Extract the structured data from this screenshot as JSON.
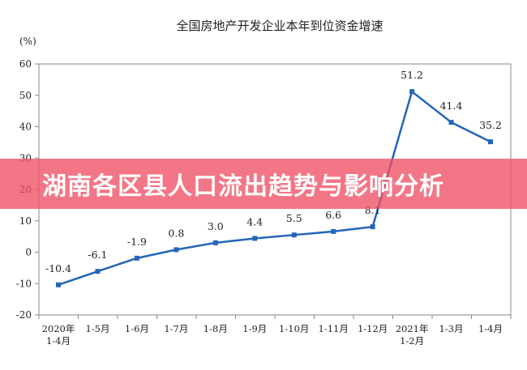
{
  "chart_data": {
    "type": "line",
    "title": "全国房地产开发企业本年到位资金增速",
    "ylabel": "(%)",
    "xlabel": "",
    "ylim": [
      -20,
      60
    ],
    "yticks": [
      -20,
      -10,
      0,
      10,
      20,
      30,
      40,
      50,
      60
    ],
    "grid": false,
    "legend": "none",
    "categories": [
      [
        "2020年",
        "1-4月"
      ],
      [
        "1-5月"
      ],
      [
        "1-6月"
      ],
      [
        "1-7月"
      ],
      [
        "1-8月"
      ],
      [
        "1-9月"
      ],
      [
        "1-10月"
      ],
      [
        "1-11月"
      ],
      [
        "1-12月"
      ],
      [
        "2021年",
        "1-2月"
      ],
      [
        "1-3月"
      ],
      [
        "1-4月"
      ]
    ],
    "series": [
      {
        "values": [
          -10.4,
          -6.1,
          -1.9,
          0.8,
          3.0,
          4.4,
          5.5,
          6.6,
          8.1,
          51.2,
          41.4,
          35.2
        ],
        "labels": [
          "-10.4",
          "-6.1",
          "-1.9",
          "0.8",
          "3.0",
          "4.4",
          "5.5",
          "6.6",
          "8.1",
          "51.2",
          "41.4",
          "35.2"
        ]
      }
    ],
    "colors": {
      "line": "#2266b8",
      "axis": "#888888",
      "text": "#222222"
    }
  },
  "overlay": {
    "text": "湖南各区县人口流出趋势与影响分析",
    "color": "#f05064"
  }
}
